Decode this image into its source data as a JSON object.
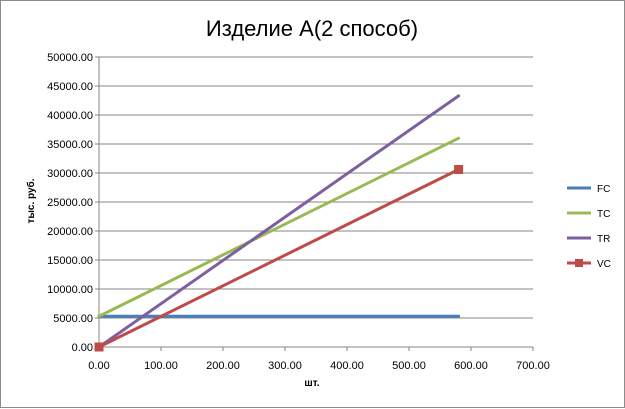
{
  "chart_data": {
    "type": "line",
    "title": "Изделие А(2 способ)",
    "xlabel": "шт.",
    "ylabel": "тыс. руб.",
    "xlim": [
      0,
      700
    ],
    "ylim": [
      0,
      50000
    ],
    "x_ticks": [
      "0.00",
      "100.00",
      "200.00",
      "300.00",
      "400.00",
      "500.00",
      "600.00",
      "700.00"
    ],
    "y_ticks": [
      "0.00",
      "5000.00",
      "10000.00",
      "15000.00",
      "20000.00",
      "25000.00",
      "30000.00",
      "35000.00",
      "40000.00",
      "45000.00",
      "50000.00"
    ],
    "grid": "horizontal",
    "legend_position": "right",
    "series": [
      {
        "name": "FC",
        "color": "#4a7ebb",
        "marker": "none",
        "points": [
          [
            0,
            5300
          ],
          [
            580,
            5300
          ]
        ]
      },
      {
        "name": "TC",
        "color": "#98b954",
        "marker": "none",
        "points": [
          [
            0,
            5300
          ],
          [
            580,
            36000
          ]
        ]
      },
      {
        "name": "TR",
        "color": "#7d60a0",
        "marker": "none",
        "points": [
          [
            0,
            0
          ],
          [
            580,
            43300
          ]
        ]
      },
      {
        "name": "VC",
        "color": "#be4b48",
        "marker": "square",
        "points": [
          [
            0,
            0
          ],
          [
            580,
            30600
          ]
        ]
      }
    ]
  }
}
